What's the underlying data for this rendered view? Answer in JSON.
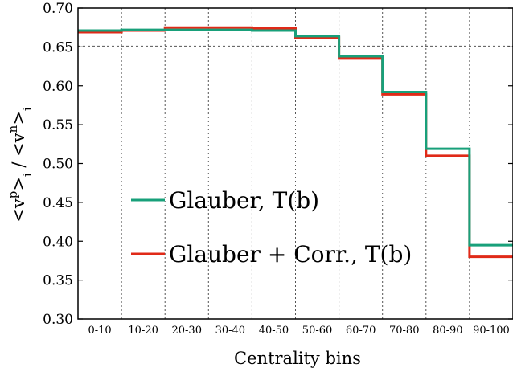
{
  "chart_data": {
    "type": "line",
    "step": true,
    "title": "",
    "xlabel": "Centrality bins",
    "ylabel_parts": {
      "lt1": "<v",
      "sup1": "p",
      "mid": ">",
      "sub1": "i",
      "sep": " / ",
      "lt2": "<v",
      "sup2": "n",
      "mid2": ">",
      "sub2": "i"
    },
    "categories": [
      "0-10",
      "10-20",
      "20-30",
      "30-40",
      "40-50",
      "50-60",
      "60-70",
      "70-80",
      "80-90",
      "90-100"
    ],
    "ylim": [
      0.3,
      0.7
    ],
    "yticks": [
      "0.30",
      "0.35",
      "0.40",
      "0.45",
      "0.50",
      "0.55",
      "0.60",
      "0.65",
      "0.70"
    ],
    "reference_line": 0.651,
    "grid": "vertical-dotted",
    "legend_position": "lower-left",
    "series": [
      {
        "name": "Glauber, T(b)",
        "color": "#18a07a",
        "values": [
          0.671,
          0.672,
          0.672,
          0.672,
          0.671,
          0.664,
          0.638,
          0.592,
          0.519,
          0.395
        ]
      },
      {
        "name": "Glauber + Corr., T(b)",
        "color": "#e02a18",
        "values": [
          0.669,
          0.671,
          0.675,
          0.675,
          0.674,
          0.662,
          0.635,
          0.589,
          0.51,
          0.38
        ]
      }
    ]
  }
}
